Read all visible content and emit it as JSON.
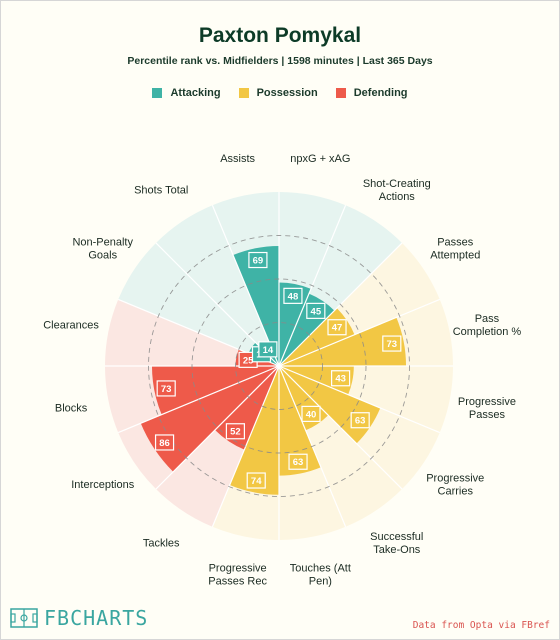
{
  "header": {
    "title": "Paxton Pomykal",
    "subtitle": "Percentile rank vs. Midfielders | 1598 minutes | Last 365 Days"
  },
  "legend": [
    {
      "label": "Attacking",
      "color": "#3fb3a6"
    },
    {
      "label": "Possession",
      "color": "#f2c744"
    },
    {
      "label": "Defending",
      "color": "#ee5a4a"
    }
  ],
  "footer": {
    "logo_text": "FBCHARTS",
    "source": "Data from Opta via FBref"
  },
  "colors": {
    "attacking_bg": "#e6f4f0",
    "possession_bg": "#fdf6e1",
    "defending_bg": "#fbe7e2"
  },
  "chart_data": {
    "type": "polar-bar",
    "range": [
      0,
      100
    ],
    "categories": [
      {
        "label": [
          "npxG + xAG"
        ],
        "value": 48,
        "group": "Attacking"
      },
      {
        "label": [
          "Shot-Creating",
          "Actions"
        ],
        "value": 45,
        "group": "Attacking"
      },
      {
        "label": [
          "Passes",
          "Attempted"
        ],
        "value": 47,
        "group": "Possession"
      },
      {
        "label": [
          "Pass",
          "Completion %"
        ],
        "value": 73,
        "group": "Possession"
      },
      {
        "label": [
          "Progressive",
          "Passes"
        ],
        "value": 43,
        "group": "Possession"
      },
      {
        "label": [
          "Progressive",
          "Carries"
        ],
        "value": 63,
        "group": "Possession"
      },
      {
        "label": [
          "Successful",
          "Take-Ons"
        ],
        "value": 40,
        "group": "Possession"
      },
      {
        "label": [
          "Touches (Att",
          "Pen)"
        ],
        "value": 63,
        "group": "Possession"
      },
      {
        "label": [
          "Progressive",
          "Passes Rec"
        ],
        "value": 74,
        "group": "Possession"
      },
      {
        "label": [
          "Tackles"
        ],
        "value": 52,
        "group": "Defending"
      },
      {
        "label": [
          "Interceptions"
        ],
        "value": 86,
        "group": "Defending"
      },
      {
        "label": [
          "Blocks"
        ],
        "value": 73,
        "group": "Defending"
      },
      {
        "label": [
          "Clearances"
        ],
        "value": 25,
        "group": "Defending"
      },
      {
        "label": [
          "Non-Penalty",
          "Goals"
        ],
        "value": 19,
        "group": "Attacking"
      },
      {
        "label": [
          "Shots Total"
        ],
        "value": 14,
        "group": "Attacking"
      },
      {
        "label": [
          "Assists"
        ],
        "value": 69,
        "group": "Attacking"
      }
    ]
  }
}
